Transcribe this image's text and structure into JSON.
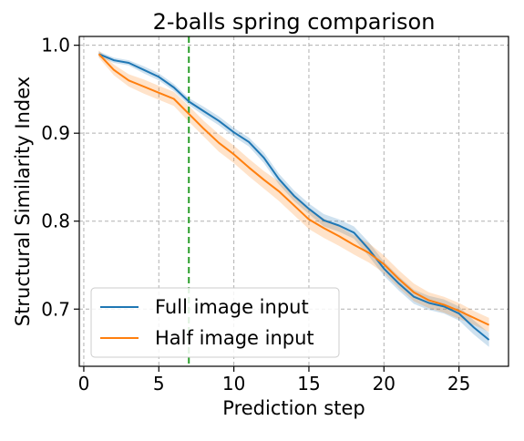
{
  "chart_data": {
    "type": "line",
    "title": "2-balls spring comparison",
    "xlabel": "Prediction step",
    "ylabel": "Structural Similarity Index",
    "xlim": [
      -0.3,
      28.3
    ],
    "ylim": [
      0.635,
      1.01
    ],
    "xticks": [
      0,
      5,
      10,
      15,
      20,
      25
    ],
    "yticks": [
      0.7,
      0.8,
      0.9,
      1.0
    ],
    "xtick_labels": [
      "0",
      "5",
      "10",
      "15",
      "20",
      "25"
    ],
    "ytick_labels": [
      "0.7",
      "0.8",
      "0.9",
      "1.0"
    ],
    "grid": true,
    "legend_position": "lower-left",
    "x": [
      1,
      2,
      3,
      4,
      5,
      6,
      7,
      8,
      9,
      10,
      11,
      12,
      13,
      14,
      15,
      16,
      17,
      18,
      19,
      20,
      21,
      22,
      23,
      24,
      25,
      26,
      27
    ],
    "vline": {
      "x": 7,
      "color": "#2ca02c"
    },
    "series": [
      {
        "name": "Full image input",
        "color": "#1f77b4",
        "values": [
          0.99,
          0.983,
          0.98,
          0.972,
          0.964,
          0.952,
          0.936,
          0.925,
          0.914,
          0.901,
          0.89,
          0.872,
          0.848,
          0.829,
          0.814,
          0.801,
          0.795,
          0.787,
          0.768,
          0.746,
          0.729,
          0.714,
          0.707,
          0.703,
          0.695,
          0.679,
          0.665
        ],
        "band": [
          0.003,
          0.003,
          0.003,
          0.004,
          0.004,
          0.004,
          0.004,
          0.005,
          0.005,
          0.005,
          0.005,
          0.006,
          0.006,
          0.006,
          0.006,
          0.007,
          0.007,
          0.007,
          0.008,
          0.008,
          0.008,
          0.008,
          0.008,
          0.008,
          0.008,
          0.008,
          0.008
        ]
      },
      {
        "name": "Half image input",
        "color": "#ff7f0e",
        "values": [
          0.99,
          0.972,
          0.96,
          0.953,
          0.946,
          0.939,
          0.922,
          0.905,
          0.889,
          0.876,
          0.861,
          0.847,
          0.834,
          0.818,
          0.802,
          0.792,
          0.783,
          0.773,
          0.764,
          0.751,
          0.734,
          0.719,
          0.71,
          0.705,
          0.698,
          0.69,
          0.682
        ],
        "band": [
          0.004,
          0.006,
          0.007,
          0.008,
          0.008,
          0.008,
          0.009,
          0.009,
          0.01,
          0.01,
          0.01,
          0.01,
          0.011,
          0.011,
          0.011,
          0.011,
          0.011,
          0.011,
          0.011,
          0.01,
          0.01,
          0.01,
          0.009,
          0.009,
          0.009,
          0.008,
          0.008
        ]
      }
    ]
  }
}
